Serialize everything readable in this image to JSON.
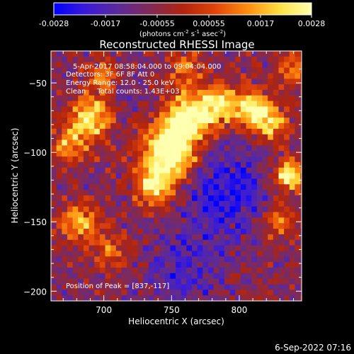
{
  "colorbar": {
    "ticks": [
      "-0.0028",
      "-0.0017",
      "-0.00055",
      "0.00055",
      "0.0017",
      "0.0028"
    ],
    "units_main": "(photons cm",
    "units_sup1": "-2",
    "units_mid": " s",
    "units_sup2": "-1",
    "units_tail": " asec",
    "units_sup3": "-2",
    "units_close": ")",
    "stops": [
      "#0000ff",
      "#3b1bd8",
      "#5c2a9a",
      "#822a55",
      "#b0240e",
      "#e0440a",
      "#ff8c10",
      "#ffe040",
      "#ffffb0"
    ]
  },
  "chart_data": {
    "type": "heatmap",
    "title": "Reconstructed RHESSI Image",
    "xlabel": "Heliocentric X (arcsec)",
    "ylabel": "Heliocentric Y (arcsec)",
    "xlim": [
      661,
      846
    ],
    "ylim": [
      -207,
      -27
    ],
    "x_ticks": [
      700,
      750,
      800
    ],
    "y_ticks": [
      -50,
      -100,
      -150,
      -200
    ],
    "info_lines": [
      "5-Apr-2017 08:58:04.000 to 09:04:04.000",
      "Detectors: 3F 6F 8F Att 0",
      "Energy Range: 12.0 - 25.0 keV",
      "Clean     Total counts: 1.43E+03"
    ],
    "peak_label": "Position of Peak = [837,-117]",
    "sources": [
      {
        "x": 748,
        "y": -100,
        "intensity": 1.0,
        "sigma": 14
      },
      {
        "x": 762,
        "y": -75,
        "intensity": 0.85,
        "sigma": 12
      },
      {
        "x": 738,
        "y": -125,
        "intensity": 0.7,
        "sigma": 10
      },
      {
        "x": 785,
        "y": -65,
        "intensity": 0.75,
        "sigma": 10
      },
      {
        "x": 810,
        "y": -68,
        "intensity": 0.8,
        "sigma": 9
      },
      {
        "x": 837,
        "y": -117,
        "intensity": 0.8,
        "sigma": 8
      },
      {
        "x": 825,
        "y": -80,
        "intensity": 0.6,
        "sigma": 9
      },
      {
        "x": 690,
        "y": -75,
        "intensity": 0.75,
        "sigma": 11
      },
      {
        "x": 675,
        "y": -95,
        "intensity": 0.55,
        "sigma": 8
      },
      {
        "x": 682,
        "y": -150,
        "intensity": 0.6,
        "sigma": 10
      },
      {
        "x": 705,
        "y": -170,
        "intensity": 0.4,
        "sigma": 9
      },
      {
        "x": 700,
        "y": -45,
        "intensity": 0.45,
        "sigma": 8
      },
      {
        "x": 760,
        "y": -40,
        "intensity": 0.35,
        "sigma": 10
      },
      {
        "x": 840,
        "y": -40,
        "intensity": 0.45,
        "sigma": 8
      },
      {
        "x": 830,
        "y": -150,
        "intensity": 0.5,
        "sigma": 8
      }
    ],
    "voids": [
      {
        "x": 790,
        "y": -130,
        "depth": 0.9,
        "sigma": 22
      },
      {
        "x": 760,
        "y": -185,
        "depth": 0.6,
        "sigma": 18
      },
      {
        "x": 720,
        "y": -60,
        "depth": 0.3,
        "sigma": 10
      }
    ]
  },
  "timestamp": "6-Sep-2022 07:16"
}
